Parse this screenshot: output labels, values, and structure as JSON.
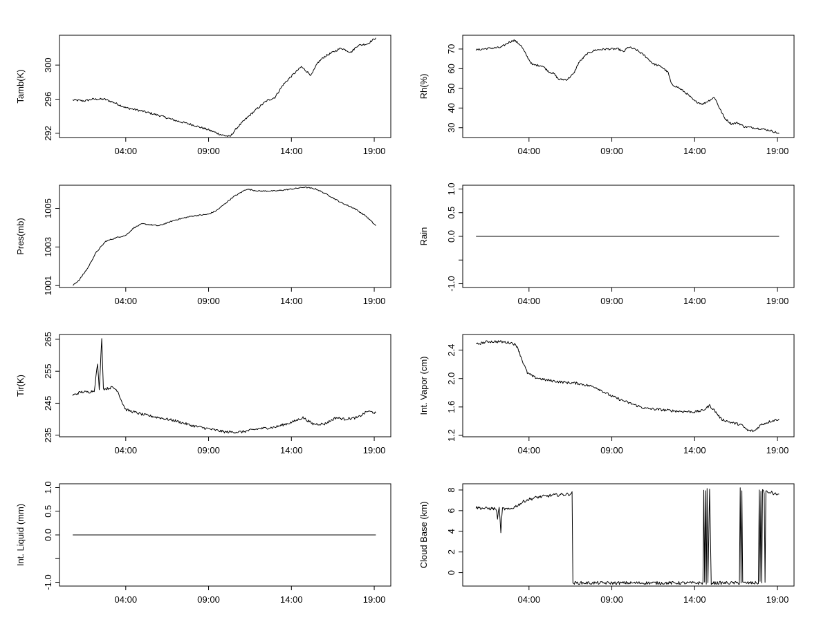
{
  "chart_data": [
    {
      "id": "tamb",
      "type": "line",
      "ylabel": "Tamb(K)",
      "xlim": [
        0,
        20
      ],
      "ylim": [
        291.5,
        303.5
      ],
      "yticks": [
        292,
        296,
        300
      ],
      "ytick_labels": [
        "292",
        "296",
        "300"
      ],
      "xticks": [
        4,
        9,
        14,
        19
      ],
      "xtick_labels": [
        "04:00",
        "09:00",
        "14:00",
        "19:00"
      ],
      "noise": 0.12,
      "points": [
        [
          0.8,
          295.9
        ],
        [
          1.5,
          295.8
        ],
        [
          2.0,
          296.0
        ],
        [
          2.7,
          296.0
        ],
        [
          3.3,
          295.6
        ],
        [
          4.0,
          295.0
        ],
        [
          5.0,
          294.6
        ],
        [
          6.0,
          294.1
        ],
        [
          7.0,
          293.5
        ],
        [
          8.0,
          293.0
        ],
        [
          9.0,
          292.4
        ],
        [
          9.8,
          291.8
        ],
        [
          10.3,
          291.6
        ],
        [
          10.7,
          292.6
        ],
        [
          11.2,
          293.6
        ],
        [
          12.0,
          295.0
        ],
        [
          12.5,
          295.8
        ],
        [
          13.0,
          296.2
        ],
        [
          13.5,
          297.7
        ],
        [
          14.0,
          298.7
        ],
        [
          14.6,
          299.8
        ],
        [
          14.9,
          299.3
        ],
        [
          15.2,
          298.8
        ],
        [
          15.6,
          300.3
        ],
        [
          16.0,
          301.0
        ],
        [
          16.5,
          301.5
        ],
        [
          17.0,
          302.0
        ],
        [
          17.6,
          301.5
        ],
        [
          18.0,
          302.3
        ],
        [
          18.6,
          302.5
        ],
        [
          19.1,
          303.2
        ]
      ]
    },
    {
      "id": "rh",
      "type": "line",
      "ylabel": "Rh(%)",
      "xlim": [
        0,
        20
      ],
      "ylim": [
        25,
        77
      ],
      "yticks": [
        30,
        40,
        50,
        60,
        70
      ],
      "ytick_labels": [
        "30",
        "40",
        "50",
        "60",
        "70"
      ],
      "xticks": [
        4,
        9,
        14,
        19
      ],
      "xtick_labels": [
        "04:00",
        "09:00",
        "14:00",
        "19:00"
      ],
      "noise": 0.5,
      "points": [
        [
          0.8,
          69.5
        ],
        [
          1.5,
          70.3
        ],
        [
          2.3,
          70.8
        ],
        [
          2.8,
          73.5
        ],
        [
          3.1,
          74.5
        ],
        [
          3.5,
          72.0
        ],
        [
          3.9,
          66.0
        ],
        [
          4.2,
          62.0
        ],
        [
          4.8,
          61.5
        ],
        [
          5.2,
          58.5
        ],
        [
          5.5,
          57.5
        ],
        [
          5.8,
          54.5
        ],
        [
          6.3,
          54.5
        ],
        [
          6.7,
          57.5
        ],
        [
          7.0,
          63.0
        ],
        [
          7.5,
          67.5
        ],
        [
          8.0,
          69.5
        ],
        [
          8.7,
          70.0
        ],
        [
          9.4,
          70.0
        ],
        [
          9.7,
          68.5
        ],
        [
          10.0,
          71.0
        ],
        [
          10.5,
          69.5
        ],
        [
          11.0,
          66.5
        ],
        [
          11.5,
          62.5
        ],
        [
          12.0,
          61.0
        ],
        [
          12.4,
          58.0
        ],
        [
          12.6,
          52.0
        ],
        [
          13.0,
          50.5
        ],
        [
          13.5,
          47.5
        ],
        [
          14.0,
          43.5
        ],
        [
          14.5,
          42.0
        ],
        [
          14.9,
          44.0
        ],
        [
          15.2,
          45.5
        ],
        [
          15.5,
          40.0
        ],
        [
          15.8,
          35.0
        ],
        [
          16.2,
          32.0
        ],
        [
          16.6,
          32.5
        ],
        [
          17.0,
          30.5
        ],
        [
          17.5,
          30.0
        ],
        [
          18.0,
          29.5
        ],
        [
          18.6,
          28.5
        ],
        [
          19.1,
          27.0
        ]
      ]
    },
    {
      "id": "pres",
      "type": "line",
      "ylabel": "Pres(mb)",
      "xlim": [
        0,
        20
      ],
      "ylim": [
        1000.9,
        1006.2
      ],
      "yticks": [
        1001,
        1003,
        1005
      ],
      "ytick_labels": [
        "1001",
        "1003",
        "1005"
      ],
      "xticks": [
        4,
        9,
        14,
        19
      ],
      "xtick_labels": [
        "04:00",
        "09:00",
        "14:00",
        "19:00"
      ],
      "noise": 0.03,
      "points": [
        [
          0.8,
          1001.0
        ],
        [
          1.2,
          1001.3
        ],
        [
          1.7,
          1001.9
        ],
        [
          2.2,
          1002.7
        ],
        [
          2.8,
          1003.3
        ],
        [
          3.5,
          1003.5
        ],
        [
          4.0,
          1003.6
        ],
        [
          4.5,
          1004.0
        ],
        [
          5.0,
          1004.2
        ],
        [
          6.0,
          1004.1
        ],
        [
          7.0,
          1004.4
        ],
        [
          8.0,
          1004.6
        ],
        [
          9.0,
          1004.7
        ],
        [
          9.5,
          1004.9
        ],
        [
          10.5,
          1005.6
        ],
        [
          11.3,
          1006.0
        ],
        [
          12.0,
          1005.9
        ],
        [
          13.0,
          1005.9
        ],
        [
          14.0,
          1006.0
        ],
        [
          14.8,
          1006.1
        ],
        [
          15.5,
          1006.0
        ],
        [
          16.2,
          1005.7
        ],
        [
          17.0,
          1005.3
        ],
        [
          17.8,
          1005.0
        ],
        [
          18.5,
          1004.6
        ],
        [
          19.1,
          1004.1
        ]
      ]
    },
    {
      "id": "rain",
      "type": "line",
      "ylabel": "Rain",
      "xlim": [
        0,
        20
      ],
      "ylim": [
        -1.08,
        1.08
      ],
      "yticks": [
        -1.0,
        -0.5,
        0.0,
        0.5,
        1.0
      ],
      "ytick_labels": [
        "-1.0",
        "",
        "0.0",
        "0.5",
        "1.0"
      ],
      "xticks": [
        4,
        9,
        14,
        19
      ],
      "xtick_labels": [
        "04:00",
        "09:00",
        "14:00",
        "19:00"
      ],
      "noise": 0,
      "points": [
        [
          0.8,
          0.0
        ],
        [
          19.1,
          0.0
        ]
      ]
    },
    {
      "id": "tir",
      "type": "line",
      "ylabel": "Tir(K)",
      "xlim": [
        0,
        20
      ],
      "ylim": [
        234.5,
        266.5
      ],
      "yticks": [
        235,
        245,
        255,
        265
      ],
      "ytick_labels": [
        "235",
        "245",
        "255",
        "265"
      ],
      "xticks": [
        4,
        9,
        14,
        19
      ],
      "xtick_labels": [
        "04:00",
        "09:00",
        "14:00",
        "19:00"
      ],
      "noise": 0.4,
      "points": [
        [
          0.8,
          247.5
        ],
        [
          1.3,
          248.5
        ],
        [
          1.8,
          248.5
        ],
        [
          2.1,
          249.0
        ],
        [
          2.3,
          257.5
        ],
        [
          2.4,
          249.0
        ],
        [
          2.55,
          265.5
        ],
        [
          2.65,
          249.5
        ],
        [
          2.8,
          249.5
        ],
        [
          3.2,
          250.0
        ],
        [
          3.5,
          249.0
        ],
        [
          3.8,
          245.0
        ],
        [
          4.0,
          243.0
        ],
        [
          5.0,
          241.5
        ],
        [
          6.0,
          240.5
        ],
        [
          7.0,
          239.5
        ],
        [
          8.0,
          238.0
        ],
        [
          9.0,
          237.0
        ],
        [
          10.0,
          236.0
        ],
        [
          11.0,
          236.0
        ],
        [
          12.0,
          237.0
        ],
        [
          13.0,
          237.5
        ],
        [
          14.0,
          239.0
        ],
        [
          14.7,
          240.5
        ],
        [
          15.3,
          238.5
        ],
        [
          16.0,
          238.5
        ],
        [
          16.7,
          240.5
        ],
        [
          17.2,
          240.0
        ],
        [
          18.0,
          240.5
        ],
        [
          18.6,
          242.5
        ],
        [
          19.1,
          242.0
        ]
      ]
    },
    {
      "id": "vapor",
      "type": "line",
      "ylabel": "Int. Vapor (cm)",
      "xlim": [
        0,
        20
      ],
      "ylim": [
        1.18,
        2.62
      ],
      "yticks": [
        1.2,
        1.6,
        2.0,
        2.4
      ],
      "ytick_labels": [
        "1.2",
        "1.6",
        "2.0",
        "2.4"
      ],
      "xticks": [
        4,
        9,
        14,
        19
      ],
      "xtick_labels": [
        "04:00",
        "09:00",
        "14:00",
        "19:00"
      ],
      "noise": 0.018,
      "points": [
        [
          0.8,
          2.48
        ],
        [
          1.5,
          2.52
        ],
        [
          2.2,
          2.52
        ],
        [
          3.0,
          2.5
        ],
        [
          3.3,
          2.45
        ],
        [
          3.6,
          2.25
        ],
        [
          3.9,
          2.08
        ],
        [
          4.3,
          2.02
        ],
        [
          5.0,
          1.98
        ],
        [
          6.0,
          1.95
        ],
        [
          7.0,
          1.93
        ],
        [
          8.0,
          1.88
        ],
        [
          9.0,
          1.75
        ],
        [
          10.0,
          1.66
        ],
        [
          11.0,
          1.58
        ],
        [
          12.0,
          1.56
        ],
        [
          13.0,
          1.54
        ],
        [
          14.0,
          1.53
        ],
        [
          14.5,
          1.55
        ],
        [
          14.9,
          1.62
        ],
        [
          15.2,
          1.55
        ],
        [
          15.6,
          1.43
        ],
        [
          16.2,
          1.38
        ],
        [
          16.8,
          1.35
        ],
        [
          17.2,
          1.27
        ],
        [
          17.6,
          1.26
        ],
        [
          18.0,
          1.35
        ],
        [
          18.6,
          1.4
        ],
        [
          19.1,
          1.43
        ]
      ]
    },
    {
      "id": "liquid",
      "type": "line",
      "ylabel": "Int. Liquid (mm)",
      "xlim": [
        0,
        20
      ],
      "ylim": [
        -1.08,
        1.08
      ],
      "yticks": [
        -1.0,
        -0.5,
        0.0,
        0.5,
        1.0
      ],
      "ytick_labels": [
        "-1.0",
        "",
        "0.0",
        "0.5",
        "1.0"
      ],
      "xticks": [
        4,
        9,
        14,
        19
      ],
      "xtick_labels": [
        "04:00",
        "09:00",
        "14:00",
        "19:00"
      ],
      "noise": 0,
      "points": [
        [
          0.8,
          0.0
        ],
        [
          19.1,
          0.0
        ]
      ]
    },
    {
      "id": "cloud",
      "type": "line",
      "ylabel": "Cloud Base (km)",
      "xlim": [
        0,
        20
      ],
      "ylim": [
        -1.3,
        8.6
      ],
      "yticks": [
        0,
        2,
        4,
        6,
        8
      ],
      "ytick_labels": [
        "0",
        "2",
        "4",
        "6",
        "8"
      ],
      "xticks": [
        4,
        9,
        14,
        19
      ],
      "xtick_labels": [
        "04:00",
        "09:00",
        "14:00",
        "19:00"
      ],
      "noise": 0.15,
      "points": [
        [
          0.8,
          6.3
        ],
        [
          1.5,
          6.2
        ],
        [
          2.0,
          6.2
        ],
        [
          2.1,
          5.3
        ],
        [
          2.2,
          6.3
        ],
        [
          2.3,
          4.0
        ],
        [
          2.4,
          6.2
        ],
        [
          2.8,
          6.1
        ],
        [
          3.3,
          6.5
        ],
        [
          3.8,
          7.0
        ],
        [
          4.5,
          7.3
        ],
        [
          5.5,
          7.5
        ],
        [
          6.4,
          7.6
        ],
        [
          6.6,
          7.7
        ],
        [
          6.65,
          -1.0
        ],
        [
          14.5,
          -1.0
        ],
        [
          14.55,
          8.0
        ],
        [
          14.6,
          -1.0
        ],
        [
          14.65,
          8.0
        ],
        [
          14.7,
          -1.0
        ],
        [
          14.75,
          8.0
        ],
        [
          14.8,
          -1.0
        ],
        [
          14.9,
          8.0
        ],
        [
          15.0,
          -1.0
        ],
        [
          16.7,
          -1.0
        ],
        [
          16.75,
          8.2
        ],
        [
          16.8,
          -1.0
        ],
        [
          16.85,
          8.0
        ],
        [
          16.9,
          -1.0
        ],
        [
          17.85,
          -1.0
        ],
        [
          17.9,
          8.0
        ],
        [
          17.95,
          -1.0
        ],
        [
          18.0,
          8.0
        ],
        [
          18.05,
          -1.0
        ],
        [
          18.1,
          8.0
        ],
        [
          18.2,
          7.8
        ],
        [
          18.25,
          -1.0
        ],
        [
          18.3,
          7.9
        ],
        [
          18.4,
          7.7
        ],
        [
          18.6,
          7.8
        ],
        [
          18.8,
          7.6
        ],
        [
          19.1,
          7.6
        ]
      ]
    }
  ]
}
